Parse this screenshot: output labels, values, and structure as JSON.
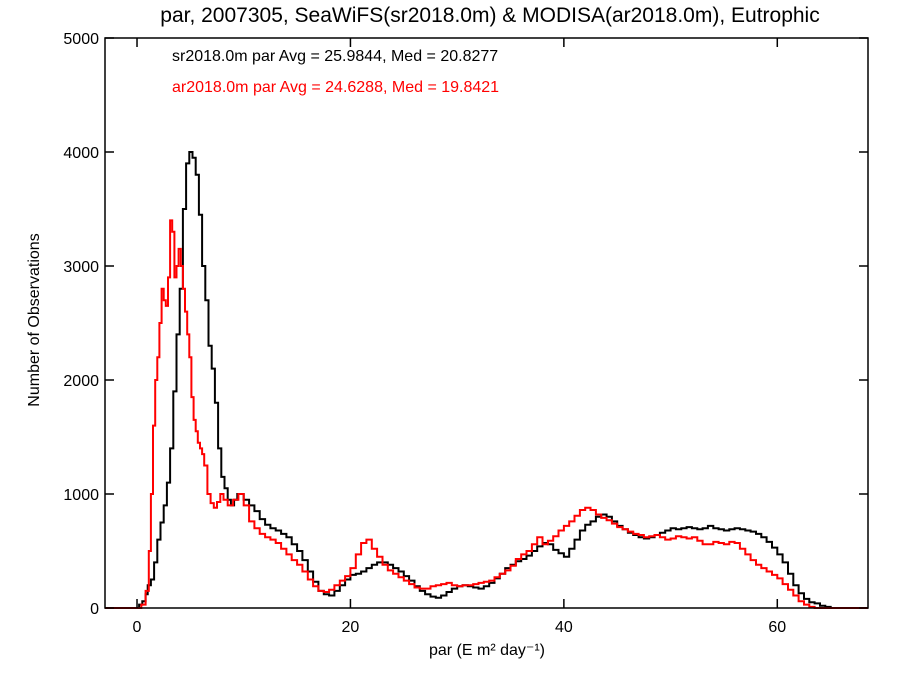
{
  "chart_data": {
    "type": "line",
    "title": "par, 2007305, SeaWiFS(sr2018.0m) & MODISA(ar2018.0m), Eutrophic",
    "xlabel": "par (E m² day⁻¹)",
    "ylabel": "Number of Observations",
    "xlim": [
      -3,
      68.5
    ],
    "ylim": [
      0,
      5000
    ],
    "x_ticks": [
      0,
      20,
      40,
      60
    ],
    "y_ticks": [
      0,
      1000,
      2000,
      3000,
      4000,
      5000
    ],
    "grid": false,
    "legend_position": "top-left",
    "series": [
      {
        "name": "sr2018.0m",
        "color": "#000000",
        "annotation": "sr2018.0m par Avg = 25.9844, Med = 20.8277",
        "points": [
          [
            -3,
            0
          ],
          [
            0,
            0
          ],
          [
            0.2,
            30
          ],
          [
            0.5,
            60
          ],
          [
            0.8,
            120
          ],
          [
            1.0,
            200
          ],
          [
            1.3,
            250
          ],
          [
            1.6,
            400
          ],
          [
            1.9,
            600
          ],
          [
            2.2,
            750
          ],
          [
            2.5,
            900
          ],
          [
            2.8,
            1100
          ],
          [
            3.1,
            1400
          ],
          [
            3.4,
            1900
          ],
          [
            3.7,
            2400
          ],
          [
            4.0,
            2800
          ],
          [
            4.3,
            3500
          ],
          [
            4.6,
            3900
          ],
          [
            4.9,
            4000
          ],
          [
            5.2,
            3950
          ],
          [
            5.5,
            3800
          ],
          [
            5.8,
            3450
          ],
          [
            6.1,
            3000
          ],
          [
            6.4,
            2700
          ],
          [
            6.7,
            2300
          ],
          [
            7.0,
            2100
          ],
          [
            7.3,
            1800
          ],
          [
            7.6,
            1400
          ],
          [
            7.9,
            1150
          ],
          [
            8.2,
            1050
          ],
          [
            8.5,
            950
          ],
          [
            8.8,
            900
          ],
          [
            9.1,
            950
          ],
          [
            9.4,
            1000
          ],
          [
            9.7,
            1000
          ],
          [
            10.0,
            950
          ],
          [
            10.5,
            900
          ],
          [
            11.0,
            850
          ],
          [
            11.5,
            780
          ],
          [
            12.0,
            730
          ],
          [
            12.5,
            700
          ],
          [
            13.0,
            680
          ],
          [
            13.5,
            650
          ],
          [
            14.0,
            620
          ],
          [
            14.5,
            560
          ],
          [
            15.0,
            500
          ],
          [
            15.5,
            420
          ],
          [
            16.0,
            320
          ],
          [
            16.5,
            230
          ],
          [
            17.0,
            150
          ],
          [
            17.5,
            120
          ],
          [
            18.0,
            110
          ],
          [
            18.5,
            150
          ],
          [
            19.0,
            200
          ],
          [
            19.5,
            250
          ],
          [
            20.0,
            290
          ],
          [
            20.5,
            300
          ],
          [
            21.0,
            320
          ],
          [
            21.5,
            350
          ],
          [
            22.0,
            380
          ],
          [
            22.5,
            400
          ],
          [
            23.0,
            400
          ],
          [
            23.5,
            380
          ],
          [
            24.0,
            350
          ],
          [
            24.5,
            320
          ],
          [
            25.0,
            280
          ],
          [
            25.5,
            240
          ],
          [
            26.0,
            190
          ],
          [
            26.5,
            150
          ],
          [
            27.0,
            120
          ],
          [
            27.5,
            100
          ],
          [
            28.0,
            90
          ],
          [
            28.5,
            110
          ],
          [
            29.0,
            140
          ],
          [
            29.5,
            170
          ],
          [
            30.0,
            190
          ],
          [
            30.5,
            200
          ],
          [
            31.0,
            190
          ],
          [
            31.5,
            180
          ],
          [
            32.0,
            170
          ],
          [
            32.5,
            190
          ],
          [
            33.0,
            220
          ],
          [
            33.5,
            260
          ],
          [
            34.0,
            300
          ],
          [
            34.5,
            350
          ],
          [
            35.0,
            380
          ],
          [
            35.5,
            410
          ],
          [
            36.0,
            430
          ],
          [
            36.5,
            460
          ],
          [
            37.0,
            500
          ],
          [
            37.5,
            540
          ],
          [
            38.0,
            570
          ],
          [
            38.5,
            560
          ],
          [
            39.0,
            510
          ],
          [
            39.5,
            480
          ],
          [
            40.0,
            450
          ],
          [
            40.5,
            520
          ],
          [
            41.0,
            600
          ],
          [
            41.5,
            680
          ],
          [
            42.0,
            730
          ],
          [
            42.5,
            760
          ],
          [
            43.0,
            800
          ],
          [
            43.5,
            820
          ],
          [
            44.0,
            800
          ],
          [
            44.5,
            760
          ],
          [
            45.0,
            720
          ],
          [
            45.5,
            690
          ],
          [
            46.0,
            660
          ],
          [
            46.5,
            640
          ],
          [
            47.0,
            620
          ],
          [
            47.5,
            610
          ],
          [
            48.0,
            620
          ],
          [
            48.5,
            640
          ],
          [
            49.0,
            660
          ],
          [
            49.5,
            680
          ],
          [
            50.0,
            700
          ],
          [
            50.5,
            690
          ],
          [
            51.0,
            700
          ],
          [
            51.5,
            710
          ],
          [
            52.0,
            700
          ],
          [
            52.5,
            690
          ],
          [
            53.0,
            700
          ],
          [
            53.5,
            720
          ],
          [
            54.0,
            700
          ],
          [
            54.5,
            690
          ],
          [
            55.0,
            680
          ],
          [
            55.5,
            690
          ],
          [
            56.0,
            700
          ],
          [
            56.5,
            690
          ],
          [
            57.0,
            680
          ],
          [
            57.5,
            670
          ],
          [
            58.0,
            650
          ],
          [
            58.5,
            620
          ],
          [
            59.0,
            580
          ],
          [
            59.5,
            530
          ],
          [
            60.0,
            470
          ],
          [
            60.5,
            400
          ],
          [
            61.0,
            300
          ],
          [
            61.5,
            200
          ],
          [
            62.0,
            130
          ],
          [
            62.5,
            80
          ],
          [
            63.0,
            50
          ],
          [
            63.5,
            40
          ],
          [
            64.0,
            20
          ],
          [
            64.5,
            10
          ],
          [
            65.0,
            0
          ],
          [
            68.5,
            0
          ]
        ]
      },
      {
        "name": "ar2018.0m",
        "color": "#ff0000",
        "annotation": "ar2018.0m par Avg = 24.6288, Med = 19.8421",
        "points": [
          [
            -3,
            0
          ],
          [
            0,
            0
          ],
          [
            0.4,
            30
          ],
          [
            0.8,
            150
          ],
          [
            1.1,
            500
          ],
          [
            1.3,
            1000
          ],
          [
            1.5,
            1600
          ],
          [
            1.7,
            2000
          ],
          [
            1.9,
            2200
          ],
          [
            2.1,
            2500
          ],
          [
            2.3,
            2800
          ],
          [
            2.5,
            2700
          ],
          [
            2.7,
            2650
          ],
          [
            2.9,
            2900
          ],
          [
            3.1,
            3400
          ],
          [
            3.3,
            3300
          ],
          [
            3.5,
            2900
          ],
          [
            3.7,
            3000
          ],
          [
            3.9,
            3150
          ],
          [
            4.1,
            3000
          ],
          [
            4.3,
            2800
          ],
          [
            4.5,
            2600
          ],
          [
            4.7,
            2400
          ],
          [
            4.9,
            2200
          ],
          [
            5.1,
            1850
          ],
          [
            5.3,
            1650
          ],
          [
            5.5,
            1550
          ],
          [
            5.7,
            1450
          ],
          [
            5.9,
            1400
          ],
          [
            6.1,
            1350
          ],
          [
            6.3,
            1250
          ],
          [
            6.6,
            1000
          ],
          [
            6.9,
            920
          ],
          [
            7.2,
            880
          ],
          [
            7.5,
            930
          ],
          [
            7.8,
            1000
          ],
          [
            8.1,
            950
          ],
          [
            8.5,
            900
          ],
          [
            9.0,
            950
          ],
          [
            9.5,
            1000
          ],
          [
            10.0,
            900
          ],
          [
            10.5,
            760
          ],
          [
            11.0,
            700
          ],
          [
            11.5,
            650
          ],
          [
            12.0,
            620
          ],
          [
            12.5,
            600
          ],
          [
            13.0,
            570
          ],
          [
            13.5,
            520
          ],
          [
            14.0,
            470
          ],
          [
            14.5,
            420
          ],
          [
            15.0,
            380
          ],
          [
            15.5,
            320
          ],
          [
            16.0,
            250
          ],
          [
            16.5,
            190
          ],
          [
            17.0,
            150
          ],
          [
            17.5,
            140
          ],
          [
            18.0,
            160
          ],
          [
            18.5,
            200
          ],
          [
            19.0,
            240
          ],
          [
            19.5,
            280
          ],
          [
            20.0,
            350
          ],
          [
            20.5,
            470
          ],
          [
            21.0,
            570
          ],
          [
            21.5,
            600
          ],
          [
            22.0,
            520
          ],
          [
            22.5,
            450
          ],
          [
            23.0,
            380
          ],
          [
            23.5,
            330
          ],
          [
            24.0,
            300
          ],
          [
            24.5,
            270
          ],
          [
            25.0,
            240
          ],
          [
            25.5,
            210
          ],
          [
            26.0,
            180
          ],
          [
            26.5,
            170
          ],
          [
            27.0,
            170
          ],
          [
            27.5,
            190
          ],
          [
            28.0,
            200
          ],
          [
            28.5,
            210
          ],
          [
            29.0,
            220
          ],
          [
            29.5,
            200
          ],
          [
            30.0,
            190
          ],
          [
            30.5,
            200
          ],
          [
            31.0,
            200
          ],
          [
            31.5,
            210
          ],
          [
            32.0,
            220
          ],
          [
            32.5,
            230
          ],
          [
            33.0,
            240
          ],
          [
            33.5,
            270
          ],
          [
            34.0,
            300
          ],
          [
            34.5,
            330
          ],
          [
            35.0,
            370
          ],
          [
            35.5,
            430
          ],
          [
            36.0,
            470
          ],
          [
            36.5,
            500
          ],
          [
            37.0,
            560
          ],
          [
            37.5,
            620
          ],
          [
            38.0,
            560
          ],
          [
            38.5,
            590
          ],
          [
            39.0,
            630
          ],
          [
            39.5,
            680
          ],
          [
            40.0,
            720
          ],
          [
            40.5,
            760
          ],
          [
            41.0,
            810
          ],
          [
            41.5,
            860
          ],
          [
            42.0,
            880
          ],
          [
            42.5,
            860
          ],
          [
            43.0,
            820
          ],
          [
            43.5,
            790
          ],
          [
            44.0,
            770
          ],
          [
            44.5,
            740
          ],
          [
            45.0,
            710
          ],
          [
            45.5,
            690
          ],
          [
            46.0,
            670
          ],
          [
            46.5,
            650
          ],
          [
            47.0,
            640
          ],
          [
            47.5,
            620
          ],
          [
            48.0,
            630
          ],
          [
            48.5,
            640
          ],
          [
            49.0,
            620
          ],
          [
            49.5,
            600
          ],
          [
            50.0,
            610
          ],
          [
            50.5,
            630
          ],
          [
            51.0,
            620
          ],
          [
            51.5,
            610
          ],
          [
            52.0,
            620
          ],
          [
            52.5,
            590
          ],
          [
            53.0,
            560
          ],
          [
            53.5,
            560
          ],
          [
            54.0,
            580
          ],
          [
            54.5,
            570
          ],
          [
            55.0,
            560
          ],
          [
            55.5,
            580
          ],
          [
            56.0,
            570
          ],
          [
            56.5,
            520
          ],
          [
            57.0,
            470
          ],
          [
            57.5,
            420
          ],
          [
            58.0,
            380
          ],
          [
            58.5,
            350
          ],
          [
            59.0,
            320
          ],
          [
            59.5,
            290
          ],
          [
            60.0,
            260
          ],
          [
            60.5,
            210
          ],
          [
            61.0,
            160
          ],
          [
            61.5,
            110
          ],
          [
            62.0,
            60
          ],
          [
            62.5,
            30
          ],
          [
            63.0,
            10
          ],
          [
            63.5,
            0
          ],
          [
            68.5,
            0
          ]
        ]
      }
    ]
  }
}
